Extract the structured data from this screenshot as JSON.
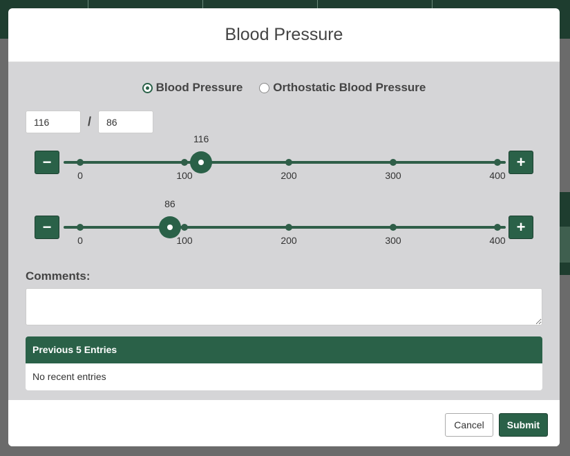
{
  "modal": {
    "title": "Blood Pressure"
  },
  "mode_options": [
    {
      "label": "Blood Pressure",
      "selected": true
    },
    {
      "label": "Orthostatic Blood Pressure",
      "selected": false
    }
  ],
  "reading": {
    "systolic": "116",
    "diastolic": "86",
    "separator": "/"
  },
  "sliders": {
    "min": 0,
    "max": 400,
    "ticks": [
      "0",
      "100",
      "200",
      "300",
      "400"
    ],
    "systolic_value": 116,
    "diastolic_value": 86,
    "minus_label": "−",
    "plus_label": "+"
  },
  "comments": {
    "label": "Comments:",
    "value": ""
  },
  "previous_entries": {
    "header": "Previous 5 Entries",
    "empty_text": "No recent entries"
  },
  "footer": {
    "cancel_label": "Cancel",
    "submit_label": "Submit"
  },
  "colors": {
    "accent": "#2a6148",
    "track": "#2f5e48",
    "body_bg": "#d5d5d7"
  }
}
